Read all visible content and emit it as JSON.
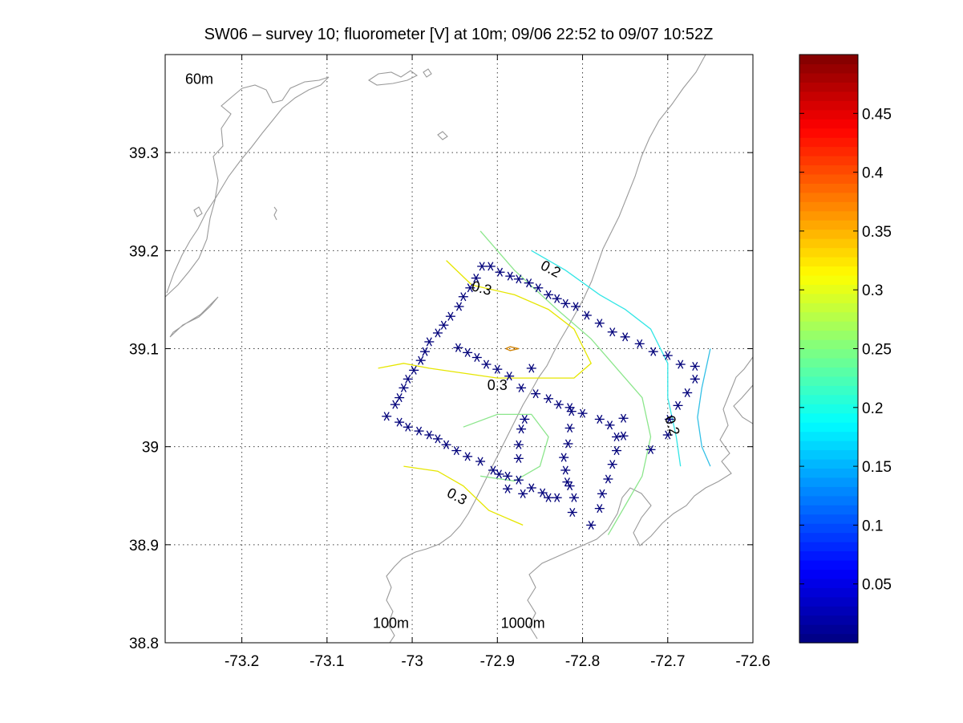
{
  "chart_data": {
    "type": "contour",
    "title": "SW06 – survey 10; fluorometer [V] at 10m; 09/06 22:52 to 09/07 10:52Z",
    "xlim": [
      -73.29,
      -72.6
    ],
    "ylim": [
      38.8,
      39.4
    ],
    "x_ticks": [
      "-73.2",
      "-73.1",
      "-73",
      "-72.9",
      "-72.8",
      "-72.7",
      "-72.6"
    ],
    "y_ticks": [
      "38.8",
      "38.9",
      "39",
      "39.1",
      "39.2",
      "39.3"
    ],
    "x_tick_values": [
      -73.2,
      -73.1,
      -73.0,
      -72.9,
      -72.8,
      -72.7,
      -72.6
    ],
    "y_tick_values": [
      38.8,
      38.9,
      39.0,
      39.1,
      39.2,
      39.3
    ],
    "grid": true,
    "colorbar": {
      "colormap": "jet",
      "range": [
        0,
        0.5
      ],
      "tick_labels": [
        "0.05",
        "0.1",
        "0.15",
        "0.2",
        "0.25",
        "0.3",
        "0.35",
        "0.4",
        "0.45"
      ],
      "tick_values": [
        0.05,
        0.1,
        0.15,
        0.2,
        0.25,
        0.3,
        0.35,
        0.4,
        0.45
      ]
    },
    "isobath_labels": [
      {
        "text": "60m",
        "x": -73.25,
        "y": 39.37
      },
      {
        "text": "100m",
        "x": -73.025,
        "y": 38.815
      },
      {
        "text": "1000m",
        "x": -72.87,
        "y": 38.815
      }
    ],
    "contour_labels": [
      {
        "text": "0.2",
        "x": -72.84,
        "y": 39.177,
        "rotate": 28
      },
      {
        "text": "0.3",
        "x": -72.92,
        "y": 39.157,
        "rotate": 15
      },
      {
        "text": "0.3",
        "x": -72.9,
        "y": 39.058,
        "rotate": 0
      },
      {
        "text": "0.3",
        "x": -72.95,
        "y": 38.945,
        "rotate": 28
      },
      {
        "text": "0.2",
        "x": -72.7,
        "y": 39.02,
        "rotate": 72
      }
    ],
    "contours": [
      {
        "level": 0.3,
        "color": "#e6e600",
        "points": [
          [
            -72.96,
            39.19
          ],
          [
            -72.93,
            39.165
          ],
          [
            -72.88,
            39.155
          ],
          [
            -72.84,
            39.14
          ],
          [
            -72.81,
            39.12
          ],
          [
            -72.79,
            39.085
          ],
          [
            -72.81,
            39.07
          ],
          [
            -72.85,
            39.07
          ],
          [
            -72.9,
            39.07
          ],
          [
            -72.94,
            39.075
          ],
          [
            -72.98,
            39.08
          ],
          [
            -73.01,
            39.085
          ],
          [
            -73.04,
            39.08
          ]
        ]
      },
      {
        "level": 0.3,
        "color": "#e6e600",
        "points": [
          [
            -73.01,
            38.98
          ],
          [
            -72.97,
            38.975
          ],
          [
            -72.94,
            38.96
          ],
          [
            -72.91,
            38.935
          ],
          [
            -72.87,
            38.92
          ]
        ]
      },
      {
        "level": 0.31,
        "color": "#d08000",
        "points": [
          [
            -72.89,
            39.1
          ],
          [
            -72.885,
            39.102
          ],
          [
            -72.875,
            39.1
          ],
          [
            -72.885,
            39.098
          ],
          [
            -72.89,
            39.1
          ]
        ]
      },
      {
        "level": 0.25,
        "color": "#8ce68c",
        "points": [
          [
            -72.92,
            39.22
          ],
          [
            -72.88,
            39.18
          ],
          [
            -72.83,
            39.14
          ],
          [
            -72.79,
            39.11
          ],
          [
            -72.76,
            39.08
          ],
          [
            -72.73,
            39.05
          ],
          [
            -72.72,
            39.01
          ],
          [
            -72.73,
            38.97
          ],
          [
            -72.75,
            38.94
          ],
          [
            -72.77,
            38.91
          ]
        ]
      },
      {
        "level": 0.25,
        "color": "#8ce68c",
        "points": [
          [
            -72.94,
            39.02
          ],
          [
            -72.9,
            39.033
          ],
          [
            -72.86,
            39.033
          ],
          [
            -72.84,
            39.01
          ],
          [
            -72.85,
            38.98
          ],
          [
            -72.88,
            38.965
          ],
          [
            -72.92,
            38.97
          ]
        ]
      },
      {
        "level": 0.2,
        "color": "#33e6e6",
        "points": [
          [
            -72.86,
            39.2
          ],
          [
            -72.82,
            39.18
          ],
          [
            -72.78,
            39.155
          ],
          [
            -72.75,
            39.14
          ],
          [
            -72.72,
            39.12
          ],
          [
            -72.7,
            39.085
          ],
          [
            -72.7,
            39.05
          ],
          [
            -72.69,
            39.01
          ],
          [
            -72.685,
            38.98
          ]
        ]
      },
      {
        "level": 0.18,
        "color": "#33c0e6",
        "points": [
          [
            -72.65,
            39.1
          ],
          [
            -72.66,
            39.06
          ],
          [
            -72.665,
            39.03
          ],
          [
            -72.66,
            39.0
          ],
          [
            -72.65,
            38.98
          ]
        ]
      }
    ],
    "stations": [
      [
        -73.03,
        39.031
      ],
      [
        -73.02,
        39.043
      ],
      [
        -73.015,
        39.05
      ],
      [
        -73.01,
        39.06
      ],
      [
        -73.005,
        39.069
      ],
      [
        -72.998,
        39.078
      ],
      [
        -72.99,
        39.088
      ],
      [
        -72.985,
        39.097
      ],
      [
        -72.98,
        39.107
      ],
      [
        -72.97,
        39.116
      ],
      [
        -72.963,
        39.124
      ],
      [
        -72.955,
        39.133
      ],
      [
        -72.945,
        39.143
      ],
      [
        -72.94,
        39.153
      ],
      [
        -72.932,
        39.162
      ],
      [
        -72.925,
        39.172
      ],
      [
        -72.918,
        39.184
      ],
      [
        -72.908,
        39.184
      ],
      [
        -72.897,
        39.178
      ],
      [
        -72.885,
        39.174
      ],
      [
        -72.875,
        39.171
      ],
      [
        -72.863,
        39.167
      ],
      [
        -72.852,
        39.162
      ],
      [
        -72.84,
        39.155
      ],
      [
        -72.83,
        39.151
      ],
      [
        -72.82,
        39.146
      ],
      [
        -72.808,
        39.143
      ],
      [
        -72.795,
        39.134
      ],
      [
        -72.78,
        39.126
      ],
      [
        -72.765,
        39.117
      ],
      [
        -72.75,
        39.112
      ],
      [
        -72.733,
        39.105
      ],
      [
        -72.717,
        39.097
      ],
      [
        -72.7,
        39.093
      ],
      [
        -72.685,
        39.084
      ],
      [
        -72.668,
        39.082
      ],
      [
        -72.668,
        39.069
      ],
      [
        -72.677,
        39.055
      ],
      [
        -72.688,
        39.042
      ],
      [
        -72.698,
        39.028
      ],
      [
        -72.7,
        39.012
      ],
      [
        -72.72,
        38.997
      ],
      [
        -73.015,
        39.025
      ],
      [
        -73.005,
        39.02
      ],
      [
        -72.992,
        39.016
      ],
      [
        -72.98,
        39.012
      ],
      [
        -72.97,
        39.008
      ],
      [
        -72.96,
        39.002
      ],
      [
        -72.948,
        38.996
      ],
      [
        -72.935,
        38.99
      ],
      [
        -72.92,
        38.985
      ],
      [
        -72.905,
        38.976
      ],
      [
        -72.888,
        38.97
      ],
      [
        -72.875,
        38.966
      ],
      [
        -72.86,
        38.958
      ],
      [
        -72.847,
        38.953
      ],
      [
        -72.83,
        38.948
      ],
      [
        -72.84,
        38.948
      ],
      [
        -72.87,
        38.952
      ],
      [
        -72.888,
        38.957
      ],
      [
        -72.898,
        38.972
      ],
      [
        -72.875,
        38.988
      ],
      [
        -72.875,
        39.002
      ],
      [
        -72.872,
        39.018
      ],
      [
        -72.868,
        39.028
      ],
      [
        -72.855,
        39.054
      ],
      [
        -72.86,
        39.08
      ],
      [
        -72.872,
        39.06
      ],
      [
        -72.886,
        39.072
      ],
      [
        -72.9,
        39.079
      ],
      [
        -72.913,
        39.084
      ],
      [
        -72.924,
        39.091
      ],
      [
        -72.935,
        39.096
      ],
      [
        -72.946,
        39.101
      ],
      [
        -72.84,
        39.049
      ],
      [
        -72.828,
        39.043
      ],
      [
        -72.815,
        39.04
      ],
      [
        -72.8,
        39.034
      ],
      [
        -72.78,
        39.028
      ],
      [
        -72.768,
        39.022
      ],
      [
        -72.752,
        39.029
      ],
      [
        -72.752,
        39.011
      ],
      [
        -72.76,
        39.01
      ],
      [
        -72.76,
        38.996
      ],
      [
        -72.765,
        38.982
      ],
      [
        -72.77,
        38.967
      ],
      [
        -72.777,
        38.952
      ],
      [
        -72.78,
        38.937
      ],
      [
        -72.79,
        38.92
      ],
      [
        -72.812,
        38.933
      ],
      [
        -72.818,
        38.964
      ],
      [
        -72.82,
        38.976
      ],
      [
        -72.822,
        38.989
      ],
      [
        -72.817,
        39.003
      ],
      [
        -72.815,
        39.019
      ],
      [
        -72.813,
        39.036
      ],
      [
        -72.81,
        38.948
      ],
      [
        -72.815,
        38.96
      ]
    ]
  }
}
